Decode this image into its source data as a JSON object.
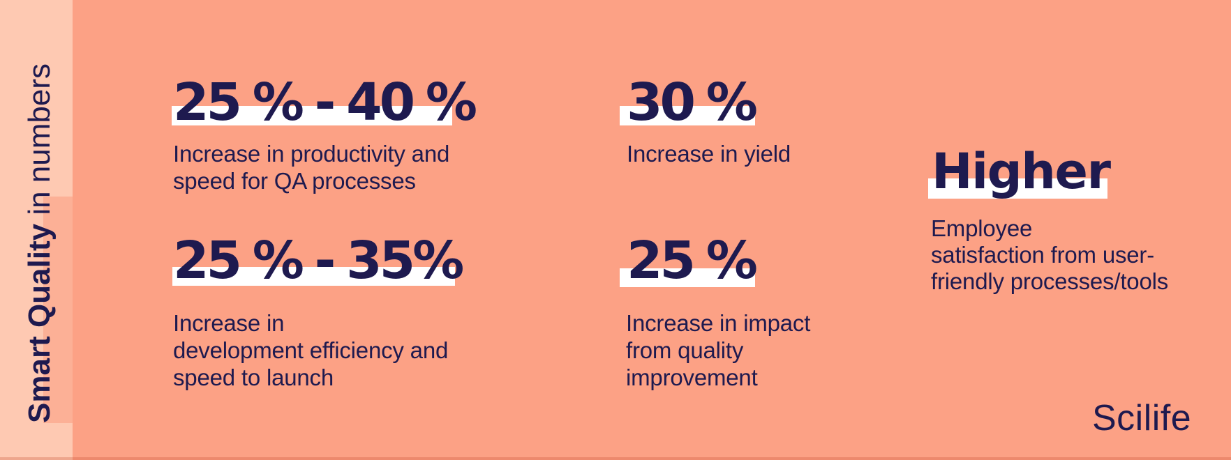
{
  "colors": {
    "background_main": "#fca185",
    "background_sidebar": "#fec9b2",
    "sidebar_highlight_strip": "#fcb096",
    "text_navy": "#1e1a4f",
    "stat_highlight": "#ffffff"
  },
  "sidebar": {
    "title_bold": "Smart Quality",
    "title_rest": " in numbers"
  },
  "stats": [
    {
      "value": "25 % - 40 %",
      "label": "Increase in productivity and\nspeed for QA processes"
    },
    {
      "value": "30 %",
      "label": "Increase in yield"
    },
    {
      "value": "25 % - 35%",
      "label": "Increase in\ndevelopment efficiency and\nspeed to launch"
    },
    {
      "value": "25 %",
      "label": "Increase in impact\nfrom quality\nimprovement"
    },
    {
      "value": "Higher",
      "label": "Employee\nsatisfaction from user-\nfriendly processes/tools"
    }
  ],
  "logo": {
    "text": "Scilife"
  },
  "chart_data": {
    "type": "table",
    "title": "Smart Quality in numbers",
    "stats": [
      {
        "metric": "Increase in productivity and speed for QA processes",
        "value": "25 % - 40 %",
        "min_pct": 25,
        "max_pct": 40
      },
      {
        "metric": "Increase in yield",
        "value": "30 %",
        "pct": 30
      },
      {
        "metric": "Increase in development efficiency and speed to launch",
        "value": "25 % - 35%",
        "min_pct": 25,
        "max_pct": 35
      },
      {
        "metric": "Increase in impact from quality improvement",
        "value": "25 %",
        "pct": 25
      },
      {
        "metric": "Employee satisfaction from user-friendly processes/tools",
        "value": "Higher"
      }
    ],
    "legend_position": "none",
    "grid": false
  }
}
